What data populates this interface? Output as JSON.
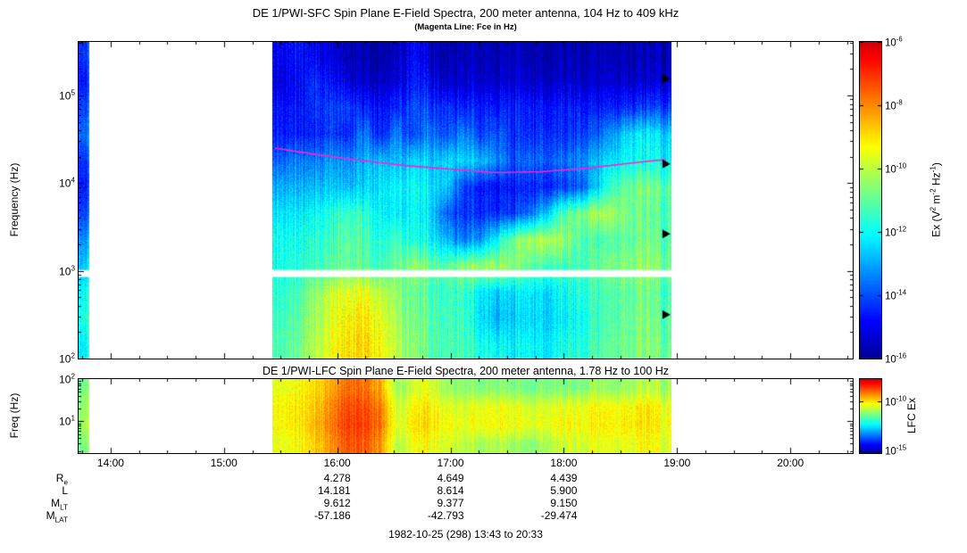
{
  "titles": {
    "main": "DE 1/PWI-SFC  Spin Plane E-Field Spectra, 200 meter antenna, 104 Hz to 409 kHz",
    "subtitle": "(Magenta Line: Fce in Hz)"
  },
  "footer": {
    "date_range": "1982-10-25 (298) 13:43 to 20:33"
  },
  "chart_data": {
    "type": "heatmap",
    "subtype": "spectrogram",
    "value_units": "log10 of spectral power",
    "x_axis": {
      "start_hour": 13.717,
      "end_hour": 20.55,
      "tick_hours": [
        14,
        15,
        16,
        17,
        18,
        19,
        20
      ],
      "tick_labels": [
        "14:00",
        "15:00",
        "16:00",
        "17:00",
        "18:00",
        "19:00",
        "20:00"
      ]
    },
    "panels": {
      "sfc": {
        "title": "DE 1/PWI-SFC  Spin Plane E-Field Spectra, 200 meter antenna, 104 Hz to 409 kHz",
        "ylabel": "Frequency (Hz)",
        "ylog_range": [
          2.0,
          5.61
        ],
        "ytick_exponents": [
          2,
          3,
          4,
          5
        ],
        "gap_log_range": [
          2.93,
          3.01
        ],
        "colorbar": {
          "label": "Ex (V^2 m^-2 Hz^-1)",
          "vmin": -16,
          "vmax": -6,
          "tick_exponents": [
            -6,
            -8,
            -10,
            -12,
            -14,
            -16
          ]
        },
        "fce_line": {
          "color": "#ff22cc",
          "hours": [
            15.45,
            15.8,
            16.2,
            16.6,
            17.0,
            17.4,
            17.8,
            18.2,
            18.6,
            18.9
          ],
          "log_hz": [
            4.4,
            4.33,
            4.26,
            4.2,
            4.16,
            4.12,
            4.13,
            4.17,
            4.23,
            4.27
          ]
        },
        "markers": {
          "shape": "triangle",
          "color": "#000000",
          "hour": 18.87,
          "log_hz": [
            5.19,
            4.22,
            3.42,
            2.5
          ]
        },
        "segments": [
          {
            "t0": 13.717,
            "t1": 13.81,
            "values": [
              [
                -14.2
              ],
              [
                -14.6
              ],
              [
                -14.0
              ],
              [
                -13.6
              ],
              [
                -14.2
              ],
              [
                -14.5
              ],
              [
                -14.0
              ],
              [
                -13.2
              ],
              [
                -12.6
              ],
              [
                -11.9
              ],
              [
                -11.7
              ],
              [
                -12.1
              ]
            ]
          },
          {
            "t0": 15.43,
            "t1": 18.95,
            "values": [
              [
                -15.0,
                -14.6,
                -15.0,
                -15.3,
                -15.6,
                -15.7,
                -15.7,
                -15.5,
                -14.8,
                -15.4,
                -15.7,
                -15.7,
                -15.7,
                -15.7,
                -15.6,
                -15.7,
                -15.7,
                -15.7,
                -15.6,
                -15.7,
                -15.7,
                -15.7,
                -15.7,
                -15.7
              ],
              [
                -15.2,
                -14.8,
                -14.4,
                -14.8,
                -15.2,
                -15.4,
                -15.4,
                -15.2,
                -14.6,
                -14.9,
                -15.4,
                -15.4,
                -15.4,
                -15.4,
                -15.3,
                -15.4,
                -15.4,
                -15.4,
                -15.3,
                -15.4,
                -15.4,
                -15.4,
                -15.4,
                -15.4
              ],
              [
                -14.7,
                -14.6,
                -14.4,
                -14.2,
                -14.2,
                -14.5,
                -14.6,
                -14.4,
                -14.0,
                -14.1,
                -14.3,
                -14.6,
                -14.6,
                -14.6,
                -14.5,
                -14.6,
                -14.6,
                -14.6,
                -14.5,
                -14.6,
                -14.6,
                -14.4,
                -14.2,
                -14.3
              ],
              [
                -14.6,
                -14.4,
                -14.6,
                -14.2,
                -14.6,
                -13.4,
                -14.4,
                -13.4,
                -14.2,
                -13.4,
                -14.0,
                -13.4,
                -14.2,
                -13.8,
                -14.4,
                -14.4,
                -14.2,
                -14.4,
                -14.0,
                -13.8,
                -13.2,
                -12.4,
                -12.2,
                -12.6
              ],
              [
                -13.8,
                -13.4,
                -13.6,
                -13.2,
                -13.4,
                -12.9,
                -12.6,
                -12.8,
                -12.5,
                -12.6,
                -12.4,
                -12.6,
                -12.8,
                -13.2,
                -14.0,
                -13.6,
                -13.8,
                -13.6,
                -13.2,
                -12.8,
                -12.4,
                -12.0,
                -11.9,
                -12.2
              ],
              [
                -12.9,
                -12.8,
                -12.9,
                -12.7,
                -12.8,
                -12.5,
                -12.2,
                -12.1,
                -12.0,
                -12.2,
                -12.6,
                -14.2,
                -14.6,
                -14.7,
                -14.6,
                -14.5,
                -14.4,
                -14.2,
                -13.8,
                -12.6,
                -11.4,
                -10.9,
                -10.7,
                -11.2
              ],
              [
                -12.3,
                -12.2,
                -12.1,
                -11.8,
                -11.4,
                -11.5,
                -12.0,
                -12.2,
                -12.1,
                -12.3,
                -13.8,
                -14.4,
                -14.4,
                -14.3,
                -14.2,
                -13.6,
                -12.5,
                -11.2,
                -10.6,
                -10.2,
                -10.4,
                -10.8,
                -10.9,
                -11.3
              ],
              [
                -11.9,
                -11.8,
                -11.7,
                -11.5,
                -11.0,
                -11.2,
                -11.6,
                -11.3,
                -11.8,
                -12.0,
                -12.8,
                -13.6,
                -13.2,
                -12.0,
                -10.8,
                -10.2,
                -10.0,
                -10.4,
                -11.0,
                -11.4,
                -11.2,
                -11.0,
                -10.8,
                -11.2
              ],
              [
                -11.8,
                -11.6,
                -11.5,
                -11.2,
                -10.9,
                -11.0,
                -11.3,
                -10.8,
                -10.5,
                -10.8,
                -11.0,
                -10.6,
                -10.4,
                -10.3,
                -10.6,
                -11.0,
                -11.2,
                -11.4,
                -11.2,
                -11.0,
                -10.8,
                -10.6,
                -10.4,
                -10.9
              ],
              [
                -11.6,
                -11.2,
                -10.6,
                -10.0,
                -9.6,
                -9.4,
                -9.8,
                -10.4,
                -11.0,
                -11.2,
                -11.4,
                -11.6,
                -12.2,
                -12.6,
                -12.4,
                -12.2,
                -12.4,
                -12.0,
                -11.6,
                -11.4,
                -11.2,
                -11.0,
                -10.8,
                -11.4
              ],
              [
                -11.4,
                -11.0,
                -10.4,
                -9.8,
                -9.2,
                -9.0,
                -9.4,
                -10.2,
                -10.8,
                -11.0,
                -11.3,
                -11.5,
                -12.4,
                -12.8,
                -12.6,
                -12.4,
                -12.5,
                -12.2,
                -11.8,
                -11.5,
                -11.2,
                -10.9,
                -10.7,
                -11.2
              ],
              [
                -11.2,
                -10.8,
                -10.2,
                -9.6,
                -9.0,
                -8.8,
                -9.2,
                -10.0,
                -10.6,
                -11.0,
                -11.2,
                -11.4,
                -11.8,
                -12.0,
                -12.2,
                -12.0,
                -12.2,
                -11.8,
                -11.6,
                -11.3,
                -11.0,
                -10.8,
                -10.6,
                -11.0
              ]
            ]
          }
        ]
      },
      "lfc": {
        "title": "DE 1/PWI-LFC  Spin Plane E-Field Spectra, 200 meter antenna, 1.78 Hz to 100 Hz",
        "ylabel": "Freq (Hz)",
        "ylog_range": [
          0.25,
          2.0
        ],
        "ytick_exponents": [
          1,
          2
        ],
        "colorbar": {
          "label": "LFC Ex",
          "vmin": -15.3,
          "vmax": -7.7,
          "tick_exponents": [
            -10,
            -15
          ]
        },
        "segments": [
          {
            "t0": 13.717,
            "t1": 13.81,
            "values": [
              [
                -11.3
              ],
              [
                -11.0
              ],
              [
                -10.9
              ],
              [
                -11.2
              ]
            ]
          },
          {
            "t0": 15.43,
            "t1": 18.95,
            "values": [
              [
                -10.4,
                -10.2,
                -10.0,
                -9.6,
                -9.0,
                -9.0,
                -9.4,
                -11.0,
                -10.6,
                -10.4,
                -11.0,
                -11.2,
                -11.3,
                -11.2,
                -11.3,
                -11.4,
                -11.2,
                -11.3,
                -11.2,
                -11.0,
                -11.2,
                -11.0,
                -10.8,
                -11.0
              ],
              [
                -10.2,
                -10.0,
                -9.8,
                -9.3,
                -8.7,
                -8.7,
                -9.0,
                -10.6,
                -10.2,
                -10.0,
                -10.4,
                -10.6,
                -10.4,
                -10.3,
                -10.4,
                -10.6,
                -10.4,
                -10.4,
                -10.3,
                -10.2,
                -10.3,
                -10.2,
                -10.0,
                -10.4
              ],
              [
                -10.2,
                -10.0,
                -9.7,
                -9.2,
                -8.6,
                -8.6,
                -8.9,
                -10.5,
                -10.0,
                -9.9,
                -10.2,
                -10.4,
                -10.3,
                -10.2,
                -10.3,
                -10.4,
                -10.3,
                -10.2,
                -10.2,
                -10.1,
                -10.2,
                -10.1,
                -10.0,
                -10.3
              ],
              [
                -10.4,
                -10.2,
                -9.9,
                -9.4,
                -8.8,
                -8.8,
                -9.2,
                -10.8,
                -10.3,
                -10.2,
                -10.5,
                -10.8,
                -11.0,
                -10.8,
                -11.0,
                -11.2,
                -10.8,
                -10.6,
                -10.5,
                -10.4,
                -10.5,
                -10.4,
                -10.2,
                -10.5
              ]
            ]
          }
        ]
      }
    },
    "ephemeris": {
      "column_hours": [
        16,
        17,
        18
      ],
      "rows": [
        {
          "label": "R",
          "sub": "e",
          "values": [
            "4.278",
            "4.649",
            "4.439"
          ]
        },
        {
          "label": "L",
          "sub": "",
          "values": [
            "14.181",
            "8.614",
            "5.900"
          ]
        },
        {
          "label": "M",
          "sub": "LT",
          "values": [
            "9.612",
            "9.377",
            "9.150"
          ]
        },
        {
          "label": "M",
          "sub": "LAT",
          "values": [
            "-57.186",
            "-42.793",
            "-29.474"
          ]
        }
      ]
    }
  }
}
